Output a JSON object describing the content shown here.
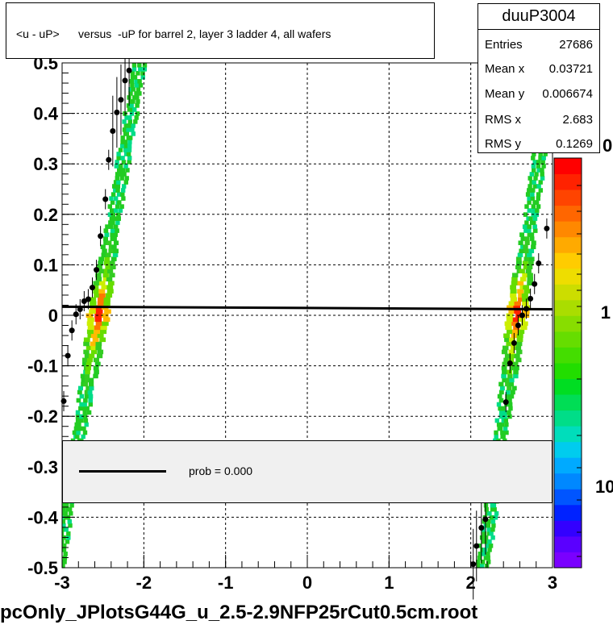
{
  "title": "<u - uP>      versus  -uP for barrel 2, layer 3 ladder 4, all wafers",
  "stats": {
    "name": "duuP3004",
    "rows": [
      {
        "label": "Entries",
        "value": "27686"
      },
      {
        "label": "Mean x",
        "value": "0.03721"
      },
      {
        "label": "Mean y",
        "value": "0.006674"
      },
      {
        "label": "RMS x",
        "value": "2.683"
      },
      {
        "label": "RMS y",
        "value": "0.1269"
      }
    ]
  },
  "legend": {
    "label": "prob = 0.000"
  },
  "filename": "pcOnly_JPlotsG44G_u_2.5-2.9NFP25rCut0.5cm.root",
  "colors": {
    "low": "#00c8ff",
    "mid": "#44cc22",
    "high": "#ff3300",
    "profile": "#000000",
    "fit": "#000000",
    "grid": "#000000"
  },
  "chart_data": {
    "type": "heatmap",
    "xlim": [
      -3,
      3
    ],
    "ylim": [
      -0.5,
      0.5
    ],
    "x_ticks": [
      "-3",
      "-2",
      "-1",
      "0",
      "1",
      "2",
      "3"
    ],
    "y_ticks": [
      "-0.5",
      "-0.4",
      "-0.3",
      "-0.2",
      "-0.1",
      "0",
      "0.1",
      "0.2",
      "0.3",
      "0.4",
      "0.5"
    ],
    "z_ticks": [
      "1",
      "10"
    ],
    "z_partial_label": "0",
    "grid": true,
    "log_z": true,
    "bands": [
      {
        "name": "left",
        "x_at_bottom": -3.05,
        "x_at_top": -2.05,
        "half_width": 0.1,
        "y_range": [
          -0.5,
          0.5
        ]
      },
      {
        "name": "right",
        "x_at_bottom": 2.15,
        "x_at_top": 3.0,
        "half_width": 0.1,
        "y_range": [
          -0.5,
          0.5
        ]
      }
    ],
    "profile": [
      {
        "x": -2.98,
        "y": -0.17
      },
      {
        "x": -2.93,
        "y": -0.08
      },
      {
        "x": -2.88,
        "y": -0.03
      },
      {
        "x": -2.83,
        "y": 0.002
      },
      {
        "x": -2.78,
        "y": 0.012
      },
      {
        "x": -2.73,
        "y": 0.028
      },
      {
        "x": -2.68,
        "y": 0.032
      },
      {
        "x": -2.63,
        "y": 0.055
      },
      {
        "x": -2.58,
        "y": 0.09
      },
      {
        "x": -2.53,
        "y": 0.157
      },
      {
        "x": -2.47,
        "y": 0.23
      },
      {
        "x": -2.43,
        "y": 0.308
      },
      {
        "x": -2.38,
        "y": 0.365
      },
      {
        "x": -2.33,
        "y": 0.402
      },
      {
        "x": -2.28,
        "y": 0.427
      },
      {
        "x": -2.23,
        "y": 0.465
      },
      {
        "x": -2.18,
        "y": 0.485
      },
      {
        "x": 2.03,
        "y": -0.493
      },
      {
        "x": 2.07,
        "y": -0.457
      },
      {
        "x": 2.13,
        "y": -0.421
      },
      {
        "x": 2.18,
        "y": -0.404
      },
      {
        "x": 2.43,
        "y": -0.172
      },
      {
        "x": 2.48,
        "y": -0.095
      },
      {
        "x": 2.53,
        "y": -0.055
      },
      {
        "x": 2.58,
        "y": -0.02
      },
      {
        "x": 2.63,
        "y": 0.0
      },
      {
        "x": 2.68,
        "y": 0.013
      },
      {
        "x": 2.73,
        "y": 0.033
      },
      {
        "x": 2.78,
        "y": 0.062
      },
      {
        "x": 2.83,
        "y": 0.103
      },
      {
        "x": 2.93,
        "y": 0.172
      }
    ],
    "fit_line": {
      "x": [
        -3,
        3
      ],
      "y": [
        0.017,
        0.012
      ]
    }
  }
}
